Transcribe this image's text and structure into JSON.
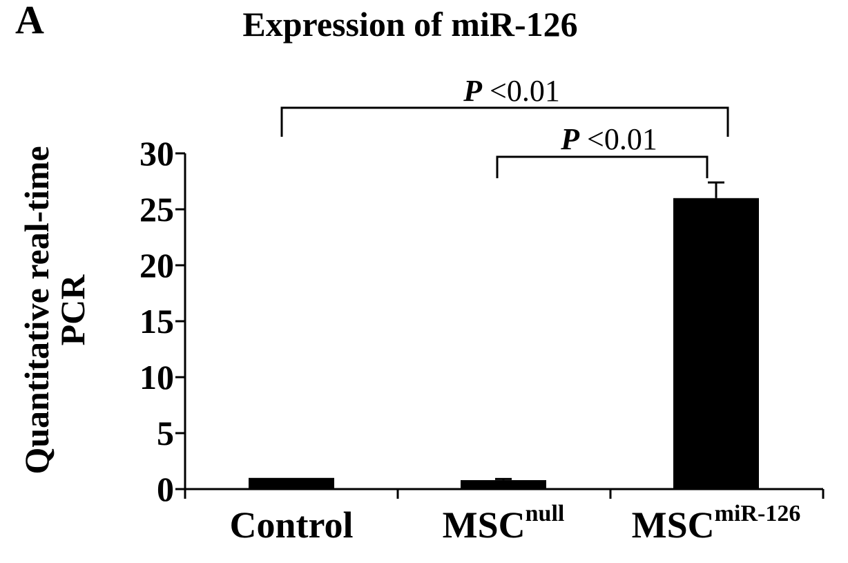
{
  "panel_label": "A",
  "chart_data": {
    "type": "bar",
    "title": "Expression of miR-126",
    "ylabel": [
      "Quantitative real-time",
      "PCR"
    ],
    "xlabel": "",
    "ylim": [
      0,
      30
    ],
    "yticks": [
      0,
      5,
      10,
      15,
      20,
      25,
      30
    ],
    "categories": [
      {
        "base": "Control",
        "sup": ""
      },
      {
        "base": "MSC",
        "sup": "null"
      },
      {
        "base": "MSC",
        "sup": "miR-126"
      }
    ],
    "values": [
      1.0,
      0.8,
      26.0
    ],
    "errors": [
      0.0,
      0.1,
      1.4
    ],
    "bar_color": "#000000",
    "grid": false,
    "legend": "none",
    "annotations": [
      {
        "label_italic": "P",
        "label_rest": " <0.01",
        "from": 0,
        "to": 2
      },
      {
        "label_italic": "P",
        "label_rest": " <0.01",
        "from": 1,
        "to": 2
      }
    ]
  }
}
